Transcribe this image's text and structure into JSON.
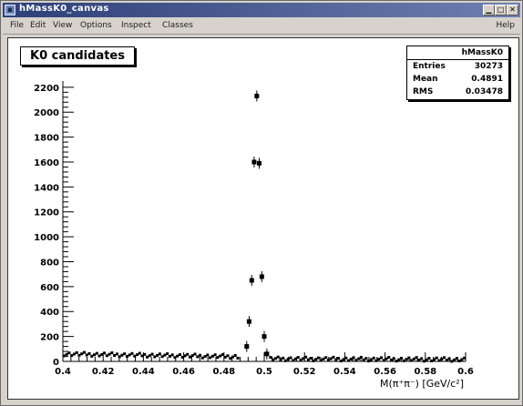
{
  "window": {
    "title": "hMassK0_canvas",
    "menu": [
      "File",
      "Edit",
      "View",
      "Options",
      "Inspect",
      "Classes"
    ],
    "help": "Help"
  },
  "stats": {
    "name": "hMassK0",
    "rows": [
      {
        "key": "Entries",
        "value": "30273"
      },
      {
        "key": "Mean",
        "value": "0.4891"
      },
      {
        "key": "RMS",
        "value": "0.03478"
      }
    ]
  },
  "chart_data": {
    "type": "scatter",
    "title": "K0 candidates",
    "xlabel": "M(π⁺π⁻) [GeV/c²]",
    "ylabel": "",
    "xlim": [
      0.4,
      0.6
    ],
    "ylim": [
      0,
      2250
    ],
    "xticks": [
      0.4,
      0.42,
      0.44,
      0.46,
      0.48,
      0.5,
      0.52,
      0.54,
      0.56,
      0.58,
      0.6
    ],
    "xtick_labels": [
      "0.4",
      "0.42",
      "0.44",
      "0.46",
      "0.48",
      "0.5",
      "0.52",
      "0.54",
      "0.56",
      "0.58",
      "0.6"
    ],
    "yticks": [
      0,
      200,
      400,
      600,
      800,
      1000,
      1200,
      1400,
      1600,
      1800,
      2000,
      2200
    ],
    "ytick_labels": [
      "0",
      "200",
      "400",
      "600",
      "800",
      "1000",
      "1200",
      "1400",
      "1600",
      "1800",
      "2000",
      "2200"
    ],
    "grid": false,
    "legend": "top-right",
    "peak_points": [
      {
        "x": 0.4913,
        "y": 120
      },
      {
        "x": 0.4925,
        "y": 320
      },
      {
        "x": 0.4938,
        "y": 650
      },
      {
        "x": 0.495,
        "y": 1600
      },
      {
        "x": 0.4963,
        "y": 2130
      },
      {
        "x": 0.4975,
        "y": 1590
      },
      {
        "x": 0.4988,
        "y": 680
      },
      {
        "x": 0.5,
        "y": 200
      },
      {
        "x": 0.5013,
        "y": 60
      }
    ],
    "background_level_left": 60,
    "background_level_right": 15,
    "background_bins": 160
  }
}
